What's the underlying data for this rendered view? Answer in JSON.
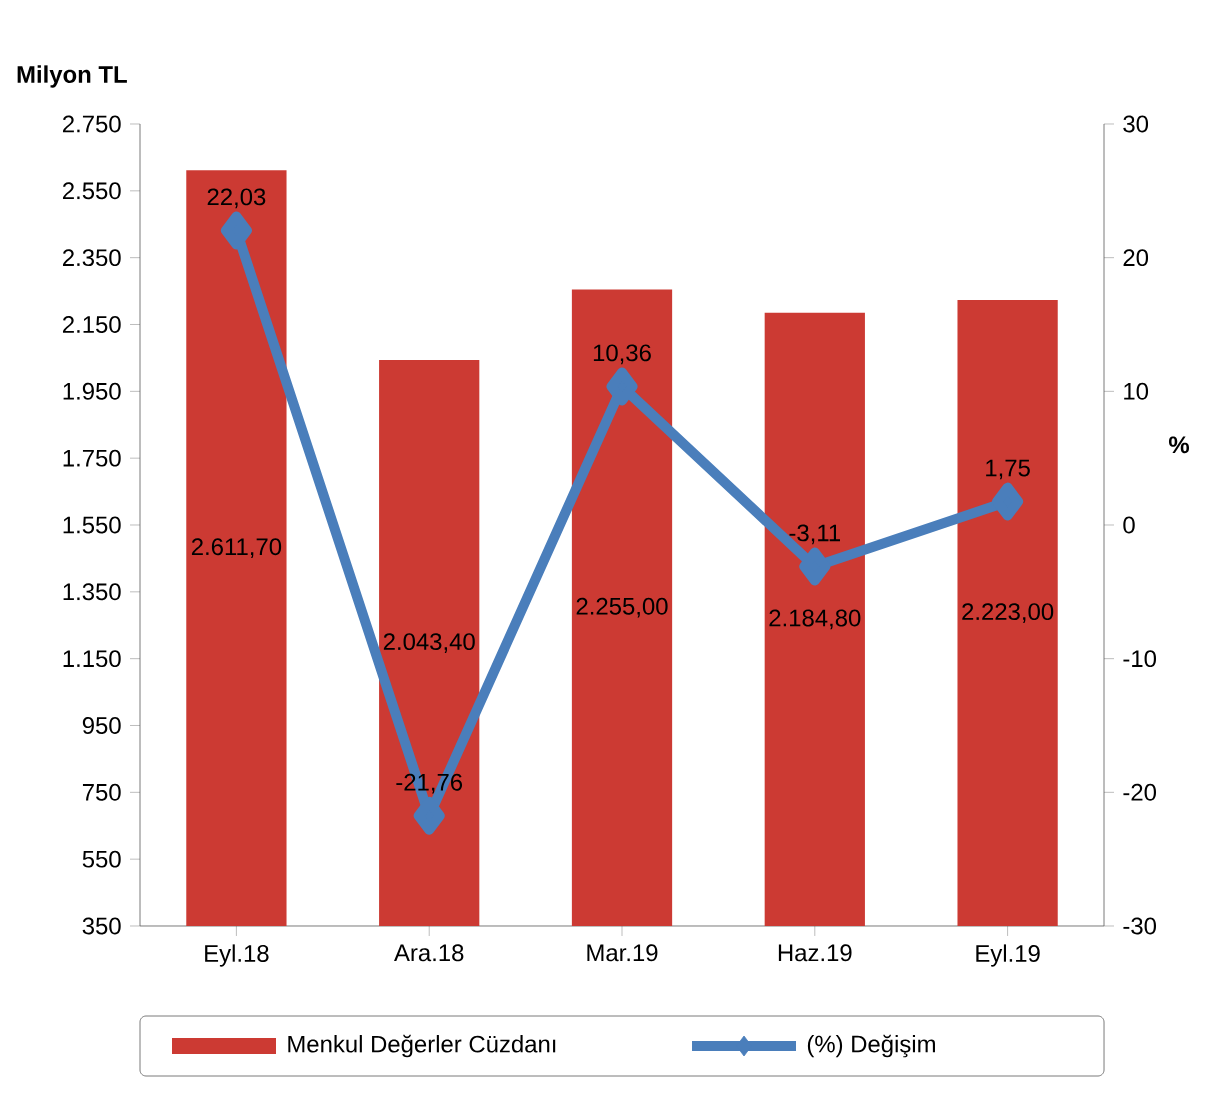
{
  "chart_data": {
    "type": "bar",
    "ylabel": "Milyon TL",
    "y2label": "%",
    "categories": [
      "Eyl.18",
      "Ara.18",
      "Mar.19",
      "Haz.19",
      "Eyl.19"
    ],
    "series": [
      {
        "name": "Menkul Değerler Cüzdanı",
        "color": "#cc3a33",
        "values": [
          2611.7,
          2043.4,
          2255.0,
          2184.8,
          2223.0
        ],
        "value_labels": [
          "2.611,70",
          "2.043,40",
          "2.255,00",
          "2.184,80",
          "2.223,00"
        ]
      },
      {
        "name": "(%) Değişim",
        "type": "line",
        "axis": "y2",
        "color": "#4a7ebb",
        "values": [
          22.03,
          -21.76,
          10.36,
          -3.11,
          1.75
        ],
        "value_labels": [
          "22,03",
          "-21,76",
          "10,36",
          "-3,11",
          "1,75"
        ]
      }
    ],
    "ylim": [
      350,
      2750
    ],
    "yticks": [
      {
        "value": 350,
        "label": "350"
      },
      {
        "value": 550,
        "label": "550"
      },
      {
        "value": 750,
        "label": "750"
      },
      {
        "value": 950,
        "label": "950"
      },
      {
        "value": 1150,
        "label": "1.150"
      },
      {
        "value": 1350,
        "label": "1.350"
      },
      {
        "value": 1550,
        "label": "1.550"
      },
      {
        "value": 1750,
        "label": "1.750"
      },
      {
        "value": 1950,
        "label": "1.950"
      },
      {
        "value": 2150,
        "label": "2.150"
      },
      {
        "value": 2350,
        "label": "2.350"
      },
      {
        "value": 2550,
        "label": "2.550"
      },
      {
        "value": 2750,
        "label": "2.750"
      }
    ],
    "y2lim": [
      -30,
      30
    ],
    "y2ticks": [
      -30,
      -20,
      -10,
      0,
      10,
      20,
      30
    ],
    "legend": "bottom",
    "marker": "diamond",
    "line_style": "solid"
  }
}
